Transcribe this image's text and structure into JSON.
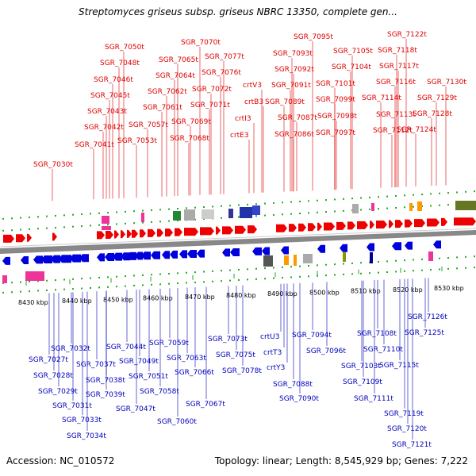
{
  "title": "Streptomyces griseus subsp. griseus NBRC 13350, complete gen...",
  "footer": {
    "accession": "Accession: NC_010572",
    "summary": "Topology: linear; Length: 8,545,929 bp; Genes: 7,222"
  },
  "colors": {
    "forward_gene": "#ee0000",
    "reverse_gene": "#0000dd",
    "top_label": "#dd0000",
    "bottom_label": "#0000bb",
    "backbone": "#888888",
    "tick": "#22aa22"
  },
  "scale_labels": [
    "8430 kbp",
    "8440 kbp",
    "8450 kbp",
    "8460 kbp",
    "8470 kbp",
    "8480 kbp",
    "8490 kbp",
    "8500 kbp",
    "8510 kbp",
    "8520 kbp",
    "8530 kbp"
  ],
  "top_labels": [
    "SGR_7030t",
    "SGR_7041t",
    "SGR_7042t",
    "SGR_7043t",
    "SGR_7045t",
    "SGR_7046t",
    "SGR_7048t",
    "SGR_7050t",
    "SGR_7053t",
    "SGR_7057t",
    "SGR_7061t",
    "SGR_7062t",
    "SGR_7064t",
    "SGR_7065t",
    "SGR_7068t",
    "SGR_7069t",
    "SGR_7070t",
    "SGR_7071t",
    "SGR_7072t",
    "SGR_7076t",
    "SGR_7077t",
    "crtE3",
    "crtI3",
    "crtB3",
    "crtV3",
    "SGR_7086t",
    "SGR_7087t",
    "SGR_7089t",
    "SGR_7091t",
    "SGR_7092t",
    "SGR_7093t",
    "SGR_7095t",
    "SGR_7097t",
    "SGR_7098t",
    "SGR_7099t",
    "SGR_7101t",
    "SGR_7104t",
    "SGR_7105t",
    "SGR_7112t",
    "SGR_7113t",
    "SGR_7114t",
    "SGR_7116t",
    "SGR_7117t",
    "SGR_7118t",
    "SGR_7122t",
    "SGR_7124t",
    "SGR_7128t",
    "SGR_7129t",
    "SGR_7130t"
  ],
  "bottom_labels": [
    "SGR_7027t",
    "SGR_7028t",
    "SGR_7029t",
    "SGR_7031t",
    "SGR_7032t",
    "SGR_7033t",
    "SGR_7034t",
    "SGR_7037t",
    "SGR_7038t",
    "SGR_7039t",
    "SGR_7044t",
    "SGR_7047t",
    "SGR_7049t",
    "SGR_7051t",
    "SGR_7058t",
    "SGR_7059t",
    "SGR_7060t",
    "SGR_7063t",
    "SGR_7066t",
    "SGR_7067t",
    "SGR_7073t",
    "SGR_7075t",
    "SGR_7078t",
    "crtU3",
    "crtT3",
    "crtY3",
    "SGR_7088t",
    "SGR_7090t",
    "SGR_7094t",
    "SGR_7096t",
    "SGR_7103t",
    "SGR_7108t",
    "SGR_7109t",
    "SGR_7110t",
    "SGR_7111t",
    "SGR_7115t",
    "SGR_7119t",
    "SGR_7120t",
    "SGR_7121t",
    "SGR_7125t",
    "SGR_7126t"
  ]
}
